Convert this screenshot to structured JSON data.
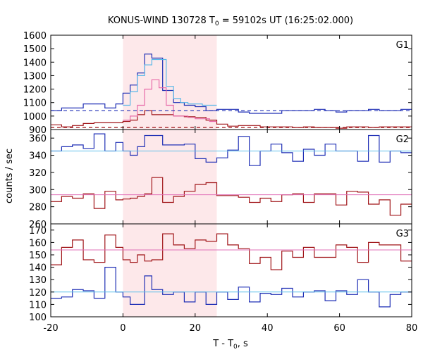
{
  "chart_data": {
    "type": "line",
    "title": "KONUS-WIND 130728 T",
    "title_sub": "0",
    "title_tail": " = 59102s UT (16:25:02.000)",
    "xlabel": "T - T",
    "xlabel_sub": "0",
    "xlabel_tail": ", s",
    "ylabel": "counts / sec",
    "xlim": [
      -20,
      80
    ],
    "x_ticks": [
      -20,
      0,
      20,
      40,
      60,
      80
    ],
    "x_tick_labels": [
      "-20",
      "0",
      "20",
      "40",
      "60",
      "80"
    ],
    "highlight_interval": [
      0,
      26
    ],
    "highlight_color": "#fde8ea",
    "bin_edges": [
      -20,
      -17,
      -14,
      -11,
      -8,
      -5,
      -2,
      0,
      2,
      4,
      6,
      8,
      11,
      14,
      17,
      20,
      23,
      26,
      29,
      32,
      35,
      38,
      41,
      44,
      47,
      50,
      53,
      56,
      59,
      62,
      65,
      68,
      71,
      74,
      77,
      80
    ],
    "fine_bin_edges": [
      0,
      2,
      4,
      6,
      8,
      10,
      12,
      14,
      16,
      18,
      20,
      22,
      24,
      26
    ],
    "panels": [
      {
        "label": "G1",
        "ylim": [
          900,
          1600
        ],
        "y_ticks": [
          900,
          1000,
          1100,
          1200,
          1300,
          1400,
          1500,
          1600
        ],
        "series": [
          {
            "color": "#1f2fb5",
            "style": "step",
            "values": [
              1040,
              1060,
              1060,
              1090,
              1090,
              1060,
              1090,
              1170,
              1230,
              1320,
              1460,
              1430,
              1190,
              1100,
              1080,
              1070,
              1040,
              1050,
              1050,
              1030,
              1020,
              1020,
              1020,
              1040,
              1040,
              1040,
              1050,
              1040,
              1030,
              1040,
              1040,
              1050,
              1040,
              1040,
              1050
            ]
          },
          {
            "color": "#a01418",
            "style": "step",
            "values": [
              935,
              920,
              930,
              945,
              950,
              950,
              950,
              960,
              970,
              1010,
              1040,
              1010,
              1010,
              1000,
              995,
              990,
              970,
              940,
              925,
              930,
              930,
              920,
              920,
              920,
              915,
              920,
              915,
              915,
              910,
              920,
              920,
              915,
              920,
              920,
              920
            ]
          },
          {
            "color": "#5ab8e8",
            "style": "fine",
            "values": [
              1080,
              1180,
              1300,
              1380,
              1420,
              1420,
              1220,
              1130,
              1100,
              1090,
              1090,
              1080,
              1080
            ]
          },
          {
            "color": "#e86aa8",
            "style": "fine",
            "values": [
              970,
              1000,
              1080,
              1200,
              1270,
              1210,
              1080,
              1000,
              1000,
              990,
              980,
              980,
              960
            ]
          },
          {
            "color": "#1f2fb5",
            "style": "dashed",
            "values": [
              1040
            ]
          },
          {
            "color": "#a01418",
            "style": "dashed",
            "values": [
              915
            ]
          }
        ]
      },
      {
        "label": "G2",
        "ylim": [
          260,
          370
        ],
        "y_ticks": [
          260,
          280,
          300,
          320,
          340,
          360
        ],
        "series": [
          {
            "color": "#1f2fb5",
            "style": "step",
            "values": [
              345,
              350,
              352,
              348,
              365,
              345,
              355,
              345,
              340,
              350,
              363,
              363,
              352,
              352,
              353,
              336,
              332,
              337,
              346,
              362,
              328,
              345,
              353,
              343,
              333,
              347,
              340,
              353,
              345,
              345,
              333,
              363,
              332,
              345,
              343
            ]
          },
          {
            "color": "#a01418",
            "style": "step",
            "values": [
              286,
              292,
              290,
              295,
              278,
              298,
              288,
              289,
              290,
              292,
              295,
              314,
              285,
              292,
              298,
              306,
              308,
              293,
              293,
              291,
              285,
              290,
              286,
              294,
              295,
              285,
              295,
              295,
              282,
              298,
              297,
              283,
              288,
              270,
              283
            ]
          },
          {
            "color": "#5ec0ea",
            "style": "flat",
            "values": [
              345
            ]
          },
          {
            "color": "#e070b8",
            "style": "flat",
            "values": [
              294
            ]
          }
        ]
      },
      {
        "label": "G3",
        "ylim": [
          100,
          175
        ],
        "y_ticks": [
          100,
          110,
          120,
          130,
          140,
          150,
          160,
          170
        ],
        "series": [
          {
            "color": "#a01418",
            "style": "step",
            "values": [
              142,
              156,
              162,
              146,
              144,
              166,
              156,
              146,
              144,
              150,
              145,
              146,
              167,
              158,
              155,
              162,
              161,
              167,
              158,
              155,
              143,
              148,
              138,
              153,
              148,
              156,
              148,
              148,
              158,
              156,
              144,
              160,
              158,
              158,
              145
            ]
          },
          {
            "color": "#1f2fb5",
            "style": "step",
            "values": [
              115,
              116,
              122,
              121,
              115,
              140,
              120,
              116,
              110,
              110,
              133,
              122,
              118,
              120,
              112,
              120,
              110,
              120,
              114,
              124,
              112,
              119,
              118,
              123,
              116,
              120,
              121,
              113,
              121,
              118,
              130,
              120,
              108,
              118,
              120
            ]
          },
          {
            "color": "#5ec0ea",
            "style": "flat",
            "values": [
              120
            ]
          },
          {
            "color": "#e070b8",
            "style": "flat",
            "values": [
              154
            ]
          }
        ]
      }
    ]
  }
}
